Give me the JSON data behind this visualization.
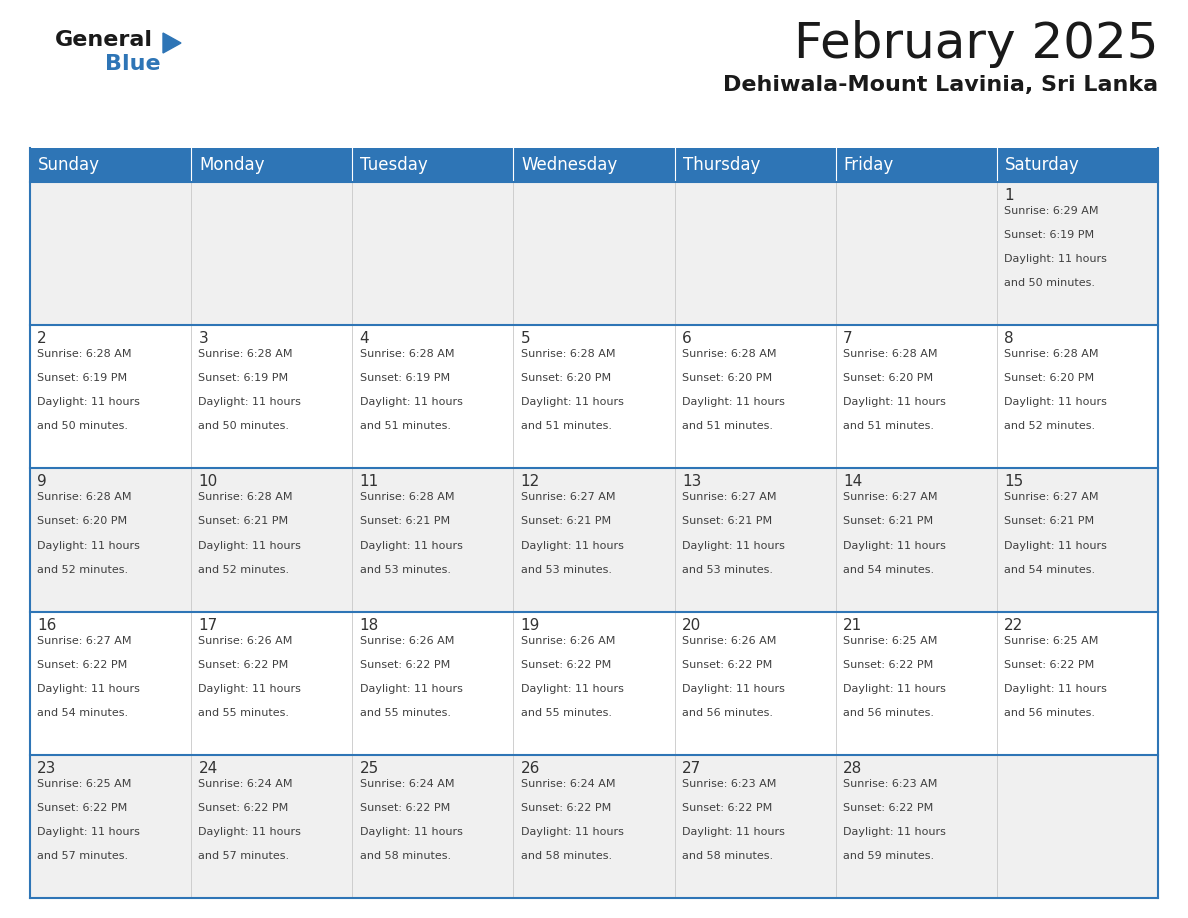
{
  "title": "February 2025",
  "subtitle": "Dehiwala-Mount Lavinia, Sri Lanka",
  "header_bg": "#2E75B6",
  "header_text_color": "#FFFFFF",
  "cell_bg_light": "#F0F0F0",
  "cell_bg_white": "#FFFFFF",
  "border_color": "#2E75B6",
  "day_names": [
    "Sunday",
    "Monday",
    "Tuesday",
    "Wednesday",
    "Thursday",
    "Friday",
    "Saturday"
  ],
  "calendar_data": [
    [
      null,
      null,
      null,
      null,
      null,
      null,
      {
        "day": 1,
        "sunrise": "6:29 AM",
        "sunset": "6:19 PM",
        "daylight_line1": "Daylight: 11 hours",
        "daylight_line2": "and 50 minutes."
      }
    ],
    [
      {
        "day": 2,
        "sunrise": "6:28 AM",
        "sunset": "6:19 PM",
        "daylight_line1": "Daylight: 11 hours",
        "daylight_line2": "and 50 minutes."
      },
      {
        "day": 3,
        "sunrise": "6:28 AM",
        "sunset": "6:19 PM",
        "daylight_line1": "Daylight: 11 hours",
        "daylight_line2": "and 50 minutes."
      },
      {
        "day": 4,
        "sunrise": "6:28 AM",
        "sunset": "6:19 PM",
        "daylight_line1": "Daylight: 11 hours",
        "daylight_line2": "and 51 minutes."
      },
      {
        "day": 5,
        "sunrise": "6:28 AM",
        "sunset": "6:20 PM",
        "daylight_line1": "Daylight: 11 hours",
        "daylight_line2": "and 51 minutes."
      },
      {
        "day": 6,
        "sunrise": "6:28 AM",
        "sunset": "6:20 PM",
        "daylight_line1": "Daylight: 11 hours",
        "daylight_line2": "and 51 minutes."
      },
      {
        "day": 7,
        "sunrise": "6:28 AM",
        "sunset": "6:20 PM",
        "daylight_line1": "Daylight: 11 hours",
        "daylight_line2": "and 51 minutes."
      },
      {
        "day": 8,
        "sunrise": "6:28 AM",
        "sunset": "6:20 PM",
        "daylight_line1": "Daylight: 11 hours",
        "daylight_line2": "and 52 minutes."
      }
    ],
    [
      {
        "day": 9,
        "sunrise": "6:28 AM",
        "sunset": "6:20 PM",
        "daylight_line1": "Daylight: 11 hours",
        "daylight_line2": "and 52 minutes."
      },
      {
        "day": 10,
        "sunrise": "6:28 AM",
        "sunset": "6:21 PM",
        "daylight_line1": "Daylight: 11 hours",
        "daylight_line2": "and 52 minutes."
      },
      {
        "day": 11,
        "sunrise": "6:28 AM",
        "sunset": "6:21 PM",
        "daylight_line1": "Daylight: 11 hours",
        "daylight_line2": "and 53 minutes."
      },
      {
        "day": 12,
        "sunrise": "6:27 AM",
        "sunset": "6:21 PM",
        "daylight_line1": "Daylight: 11 hours",
        "daylight_line2": "and 53 minutes."
      },
      {
        "day": 13,
        "sunrise": "6:27 AM",
        "sunset": "6:21 PM",
        "daylight_line1": "Daylight: 11 hours",
        "daylight_line2": "and 53 minutes."
      },
      {
        "day": 14,
        "sunrise": "6:27 AM",
        "sunset": "6:21 PM",
        "daylight_line1": "Daylight: 11 hours",
        "daylight_line2": "and 54 minutes."
      },
      {
        "day": 15,
        "sunrise": "6:27 AM",
        "sunset": "6:21 PM",
        "daylight_line1": "Daylight: 11 hours",
        "daylight_line2": "and 54 minutes."
      }
    ],
    [
      {
        "day": 16,
        "sunrise": "6:27 AM",
        "sunset": "6:22 PM",
        "daylight_line1": "Daylight: 11 hours",
        "daylight_line2": "and 54 minutes."
      },
      {
        "day": 17,
        "sunrise": "6:26 AM",
        "sunset": "6:22 PM",
        "daylight_line1": "Daylight: 11 hours",
        "daylight_line2": "and 55 minutes."
      },
      {
        "day": 18,
        "sunrise": "6:26 AM",
        "sunset": "6:22 PM",
        "daylight_line1": "Daylight: 11 hours",
        "daylight_line2": "and 55 minutes."
      },
      {
        "day": 19,
        "sunrise": "6:26 AM",
        "sunset": "6:22 PM",
        "daylight_line1": "Daylight: 11 hours",
        "daylight_line2": "and 55 minutes."
      },
      {
        "day": 20,
        "sunrise": "6:26 AM",
        "sunset": "6:22 PM",
        "daylight_line1": "Daylight: 11 hours",
        "daylight_line2": "and 56 minutes."
      },
      {
        "day": 21,
        "sunrise": "6:25 AM",
        "sunset": "6:22 PM",
        "daylight_line1": "Daylight: 11 hours",
        "daylight_line2": "and 56 minutes."
      },
      {
        "day": 22,
        "sunrise": "6:25 AM",
        "sunset": "6:22 PM",
        "daylight_line1": "Daylight: 11 hours",
        "daylight_line2": "and 56 minutes."
      }
    ],
    [
      {
        "day": 23,
        "sunrise": "6:25 AM",
        "sunset": "6:22 PM",
        "daylight_line1": "Daylight: 11 hours",
        "daylight_line2": "and 57 minutes."
      },
      {
        "day": 24,
        "sunrise": "6:24 AM",
        "sunset": "6:22 PM",
        "daylight_line1": "Daylight: 11 hours",
        "daylight_line2": "and 57 minutes."
      },
      {
        "day": 25,
        "sunrise": "6:24 AM",
        "sunset": "6:22 PM",
        "daylight_line1": "Daylight: 11 hours",
        "daylight_line2": "and 58 minutes."
      },
      {
        "day": 26,
        "sunrise": "6:24 AM",
        "sunset": "6:22 PM",
        "daylight_line1": "Daylight: 11 hours",
        "daylight_line2": "and 58 minutes."
      },
      {
        "day": 27,
        "sunrise": "6:23 AM",
        "sunset": "6:22 PM",
        "daylight_line1": "Daylight: 11 hours",
        "daylight_line2": "and 58 minutes."
      },
      {
        "day": 28,
        "sunrise": "6:23 AM",
        "sunset": "6:22 PM",
        "daylight_line1": "Daylight: 11 hours",
        "daylight_line2": "and 59 minutes."
      },
      null
    ]
  ],
  "logo_text_general": "General",
  "logo_text_blue": "Blue",
  "logo_triangle_color": "#2E75B6",
  "text_color_dark": "#333333",
  "text_color_cell": "#404040",
  "title_fontsize": 36,
  "subtitle_fontsize": 16,
  "header_fontsize": 12,
  "day_num_fontsize": 11,
  "cell_text_fontsize": 8.0
}
